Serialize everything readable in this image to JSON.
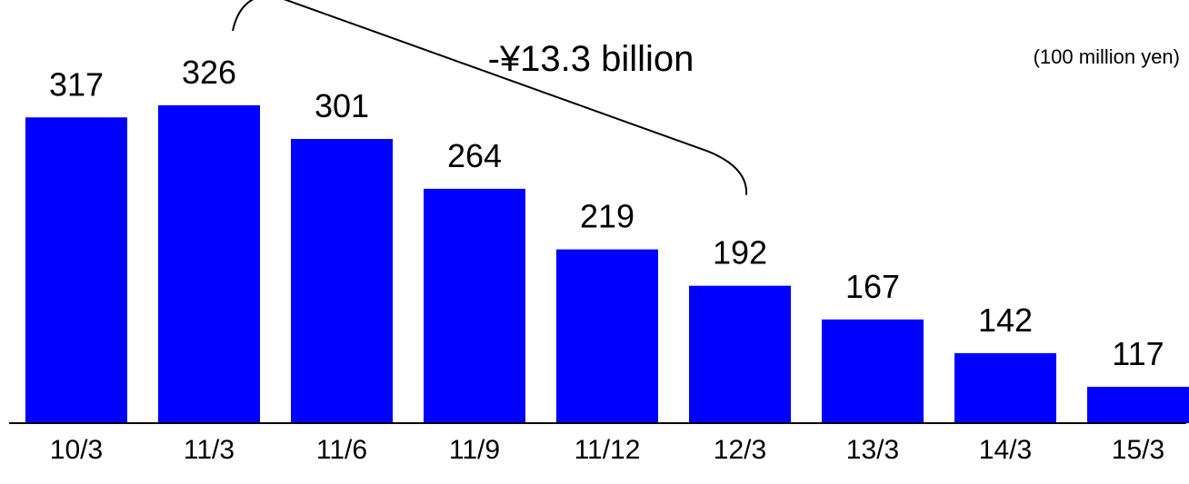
{
  "chart_data": {
    "type": "bar",
    "title": "",
    "xlabel": "",
    "ylabel": "",
    "unit": "(100 million yen)",
    "categories": [
      "10/3",
      "11/3",
      "11/6",
      "11/9",
      "11/12",
      "12/3",
      "13/3",
      "14/3",
      "15/3"
    ],
    "values": [
      317,
      326,
      301,
      264,
      219,
      192,
      167,
      142,
      117
    ],
    "ylim": [
      90,
      330
    ],
    "bar_color": "#0000ff",
    "grid": false,
    "legend": "none",
    "annotation": {
      "text": "-¥13.3 billion",
      "from_category": "11/3",
      "to_category": "12/3"
    }
  }
}
